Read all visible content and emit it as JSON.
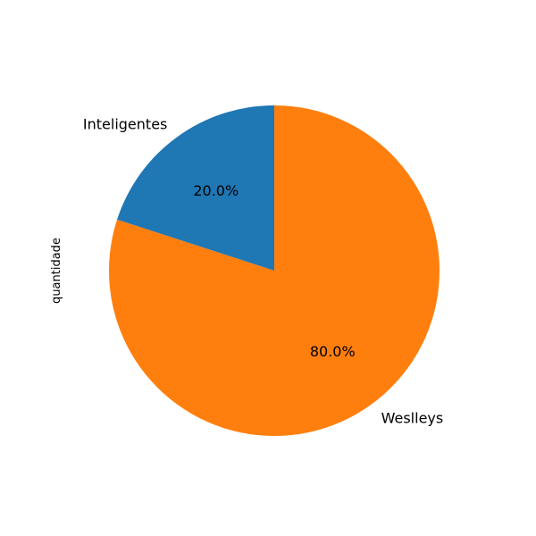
{
  "chart_data": {
    "type": "pie",
    "ylabel": "quantidade",
    "slices": [
      {
        "label": "Inteligentes",
        "value": 20,
        "percent_label": "20.0%",
        "color": "#1f77b4"
      },
      {
        "label": "Weslleys",
        "value": 80,
        "percent_label": "80.0%",
        "color": "#ff7f0e"
      }
    ],
    "start_angle_deg": 90,
    "direction": "counterclockwise"
  }
}
